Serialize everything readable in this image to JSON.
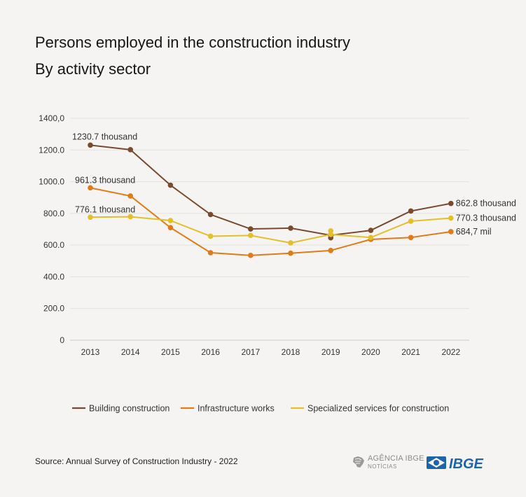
{
  "header": {
    "title": "Persons employed in the construction industry",
    "subtitle": "By activity sector"
  },
  "footer": {
    "source": "Source: Annual Survey of Construction Industry - 2022",
    "logo_agencia_line1": "AGÊNCIA IBGE",
    "logo_agencia_line2": "NOTÍCIAS",
    "logo_ibge": "IBGE"
  },
  "chart_data": {
    "type": "line",
    "title": "Persons employed in the construction industry",
    "subtitle": "By activity sector",
    "x": [
      "2013",
      "2014",
      "2015",
      "2016",
      "2017",
      "2018",
      "2019",
      "2020",
      "2021",
      "2022"
    ],
    "ylim": [
      0,
      1400
    ],
    "yticks": [
      0,
      200,
      400,
      600,
      800,
      1000,
      1200,
      1400
    ],
    "ytick_labels": [
      "0",
      "200.0",
      "400.0",
      "600.0",
      "800.0",
      "1000.0",
      "1200.0",
      "1400,0"
    ],
    "grid": "horizontal",
    "legend_position": "bottom",
    "series": [
      {
        "name": "Building construction",
        "color": "#7a4a2e",
        "values": [
          1230.7,
          1202,
          978,
          793,
          702,
          707,
          662,
          693,
          815,
          862.8
        ],
        "extra_points": [
          {
            "x": "2019",
            "y": 646
          }
        ],
        "start_label": "1230.7 thousand",
        "end_label": "862.8 thousand"
      },
      {
        "name": "Infrastructure works",
        "color": "#e07b1a",
        "values": [
          961.3,
          910,
          710,
          552,
          535,
          549,
          566,
          636,
          648,
          684.7
        ],
        "start_label": "961.3 thousand",
        "end_label": "684,7 mil"
      },
      {
        "name": "Specialized services for construction",
        "color": "#e3bf2b",
        "values": [
          776.1,
          779,
          755,
          656,
          661,
          614,
          667,
          648,
          751,
          770.3
        ],
        "extra_points": [
          {
            "x": "2019",
            "y": 690
          }
        ],
        "start_label": "776.1 thousand",
        "end_label": "770.3 thousand"
      }
    ]
  }
}
